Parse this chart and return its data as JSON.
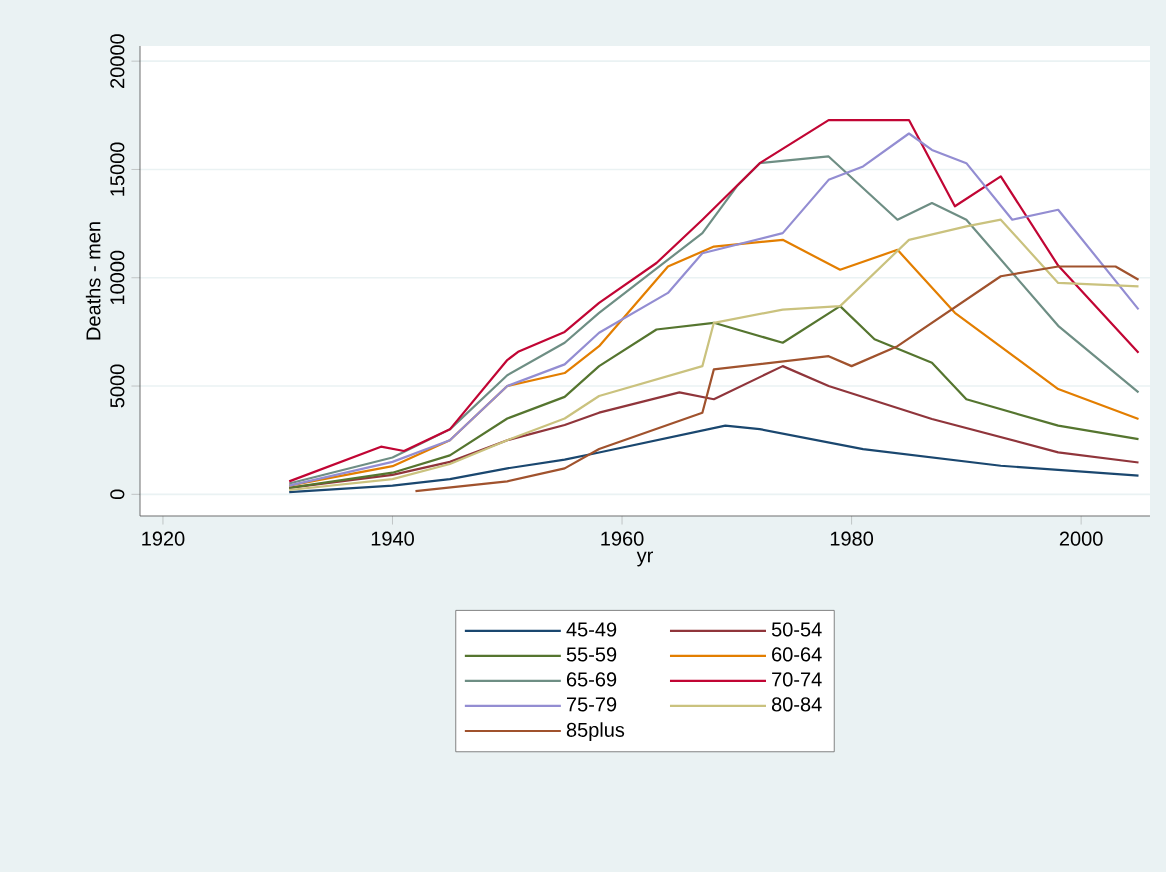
{
  "chart_data": {
    "type": "line",
    "xlabel": "yr",
    "ylabel": "Deaths - men",
    "xlim": [
      1918,
      2006
    ],
    "ylim": [
      -1000,
      20700
    ],
    "xticks": [
      1920,
      1940,
      1960,
      1980,
      2000
    ],
    "yticks": [
      0,
      5000,
      10000,
      15000,
      20000
    ],
    "grid": "y",
    "legend": "bottom",
    "marker": "none",
    "line_style": "solid",
    "series": [
      {
        "name": "45-49",
        "color": "#1a476f",
        "x": [
          1931,
          1940,
          1945,
          1950,
          1955,
          1958,
          1969,
          1972,
          1981,
          1993,
          2005
        ],
        "values": [
          100,
          400,
          700,
          1200,
          1600,
          1930,
          3170,
          3010,
          2090,
          1320,
          860
        ]
      },
      {
        "name": "50-54",
        "color": "#90353b",
        "x": [
          1931,
          1940,
          1945,
          1950,
          1955,
          1958,
          1965,
          1968,
          1974,
          1978,
          1987,
          1998,
          2005
        ],
        "values": [
          300,
          900,
          1500,
          2500,
          3200,
          3770,
          4710,
          4390,
          5920,
          5000,
          3480,
          1940,
          1470
        ]
      },
      {
        "name": "55-59",
        "color": "#55752f",
        "x": [
          1931,
          1940,
          1945,
          1950,
          1955,
          1958,
          1963,
          1968,
          1974,
          1979,
          1982,
          1987,
          1990,
          1998,
          2005
        ],
        "values": [
          300,
          1000,
          1800,
          3500,
          4500,
          5920,
          7610,
          7920,
          7000,
          8690,
          7160,
          6080,
          4390,
          3170,
          2550
        ]
      },
      {
        "name": "60-64",
        "color": "#e37e00",
        "x": [
          1931,
          1940,
          1945,
          1950,
          1955,
          1958,
          1964,
          1968,
          1974,
          1979,
          1984,
          1989,
          1998,
          2005
        ],
        "values": [
          400,
          1300,
          2500,
          5000,
          5600,
          6840,
          10520,
          11440,
          11750,
          10370,
          11290,
          8380,
          4860,
          3480
        ]
      },
      {
        "name": "65-69",
        "color": "#6e8e84",
        "x": [
          1931,
          1940,
          1945,
          1950,
          1955,
          1958,
          1967,
          1970,
          1972,
          1978,
          1984,
          1987,
          1990,
          1998,
          2005
        ],
        "values": [
          500,
          1700,
          3000,
          5500,
          7000,
          8380,
          12060,
          14220,
          15290,
          15600,
          12680,
          13450,
          12680,
          7780,
          4710
        ]
      },
      {
        "name": "70-74",
        "color": "#c10534",
        "x": [
          1931,
          1939,
          1941,
          1945,
          1950,
          1951,
          1955,
          1958,
          1963,
          1967,
          1972,
          1978,
          1985,
          1989,
          1993,
          1998,
          2005
        ],
        "values": [
          600,
          2200,
          2000,
          3000,
          6200,
          6600,
          7500,
          8840,
          10680,
          12680,
          15290,
          17280,
          17280,
          13300,
          14680,
          10560,
          6540
        ]
      },
      {
        "name": "75-79",
        "color": "#938dd2",
        "x": [
          1931,
          1940,
          1945,
          1950,
          1955,
          1958,
          1964,
          1967,
          1974,
          1978,
          1981,
          1985,
          1987,
          1990,
          1994,
          1998,
          2005
        ],
        "values": [
          400,
          1500,
          2500,
          5000,
          6000,
          7460,
          9300,
          11130,
          12060,
          14520,
          15140,
          16660,
          15900,
          15290,
          12680,
          13140,
          8540
        ]
      },
      {
        "name": "80-84",
        "color": "#cac27e",
        "x": [
          1931,
          1940,
          1945,
          1950,
          1955,
          1958,
          1967,
          1968,
          1974,
          1979,
          1985,
          1990,
          1993,
          1998,
          2005
        ],
        "values": [
          200,
          700,
          1400,
          2500,
          3500,
          4540,
          5920,
          7920,
          8530,
          8690,
          11750,
          12370,
          12680,
          9760,
          9600
        ]
      },
      {
        "name": "85plus",
        "color": "#a0522d",
        "x": [
          1942,
          1950,
          1955,
          1958,
          1967,
          1968,
          1978,
          1980,
          1984,
          1993,
          1998,
          2003,
          2005
        ],
        "values": [
          150,
          600,
          1200,
          2090,
          3770,
          5770,
          6380,
          5920,
          6840,
          10070,
          10520,
          10520,
          9910
        ]
      }
    ]
  }
}
